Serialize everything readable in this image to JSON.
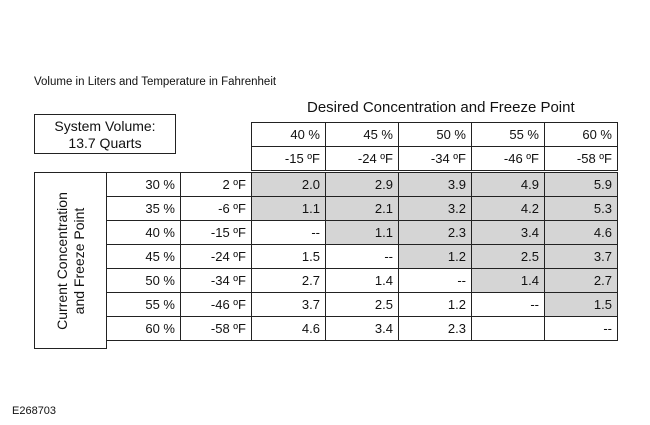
{
  "caption": "Volume in Liters and Temperature in Fahrenheit",
  "desired_header": "Desired Concentration and Freeze Point",
  "system_volume": {
    "line1": "System Volume:",
    "line2": "13.7 Quarts"
  },
  "row_axis": {
    "line1": "Current Concentration",
    "line2": "and Freeze Point"
  },
  "columns": {
    "concentrations": [
      "40 %",
      "45 %",
      "50 %",
      "55 %",
      "60 %"
    ],
    "freeze_points": [
      "-15 ºF",
      "-24 ºF",
      "-34 ºF",
      "-46 ºF",
      "-58 ºF"
    ]
  },
  "rows": [
    {
      "conc": "30 %",
      "freeze": "2 ºF",
      "values": [
        "2.0",
        "2.9",
        "3.9",
        "4.9",
        "5.9"
      ],
      "shaded": [
        true,
        true,
        true,
        true,
        true
      ]
    },
    {
      "conc": "35 %",
      "freeze": "-6 ºF",
      "values": [
        "1.1",
        "2.1",
        "3.2",
        "4.2",
        "5.3"
      ],
      "shaded": [
        true,
        true,
        true,
        true,
        true
      ]
    },
    {
      "conc": "40 %",
      "freeze": "-15 ºF",
      "values": [
        "--",
        "1.1",
        "2.3",
        "3.4",
        "4.6"
      ],
      "shaded": [
        false,
        true,
        true,
        true,
        true
      ]
    },
    {
      "conc": "45 %",
      "freeze": "-24 ºF",
      "values": [
        "1.5",
        "--",
        "1.2",
        "2.5",
        "3.7"
      ],
      "shaded": [
        false,
        false,
        true,
        true,
        true
      ]
    },
    {
      "conc": "50 %",
      "freeze": "-34 ºF",
      "values": [
        "2.7",
        "1.4",
        "--",
        "1.4",
        "2.7"
      ],
      "shaded": [
        false,
        false,
        false,
        true,
        true
      ]
    },
    {
      "conc": "55 %",
      "freeze": "-46 ºF",
      "values": [
        "3.7",
        "2.5",
        "1.2",
        "--",
        "1.5"
      ],
      "shaded": [
        false,
        false,
        false,
        false,
        true
      ]
    },
    {
      "conc": "60 %",
      "freeze": "-58 ºF",
      "values": [
        "4.6",
        "3.4",
        "2.3",
        "",
        "--"
      ],
      "shaded": [
        false,
        false,
        false,
        false,
        false
      ]
    }
  ],
  "figure_id": "E268703"
}
